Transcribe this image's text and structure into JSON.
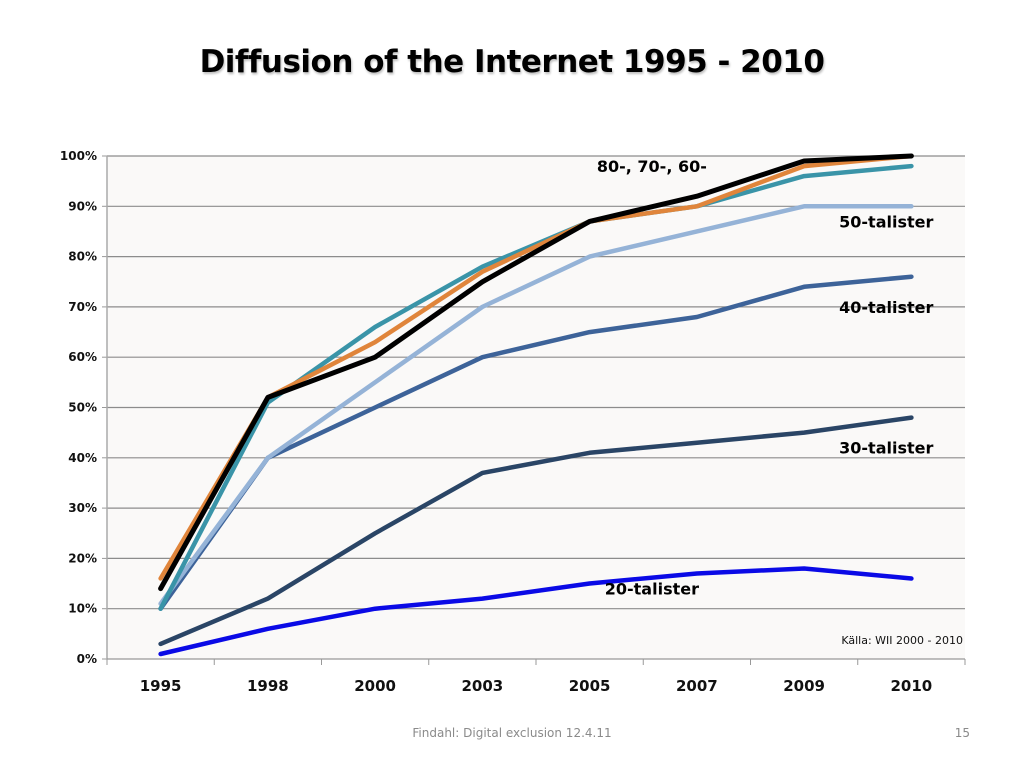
{
  "slide": {
    "title": "Diffusion of the Internet 1995 - 2010",
    "footer_text": "Findahl: Digital exclusion 12.4.11",
    "page_number": "15"
  },
  "chart_data": {
    "type": "line",
    "title": "Diffusion of the Internet 1995 - 2010",
    "xlabel": "",
    "ylabel": "",
    "categories": [
      "1995",
      "1998",
      "2000",
      "2003",
      "2005",
      "2007",
      "2009",
      "2010"
    ],
    "ylim": [
      0,
      100
    ],
    "yticks": [
      "0%",
      "10%",
      "20%",
      "30%",
      "40%",
      "50%",
      "60%",
      "70%",
      "80%",
      "90%",
      "100%"
    ],
    "grid": true,
    "series": [
      {
        "name": "20-talister",
        "color": "#0a0ae6",
        "values": [
          1,
          6,
          10,
          12,
          15,
          17,
          18,
          16
        ]
      },
      {
        "name": "30-talister",
        "color": "#2a4566",
        "values": [
          3,
          12,
          25,
          37,
          41,
          43,
          45,
          48
        ]
      },
      {
        "name": "40-talister",
        "color": "#3d6399",
        "values": [
          10,
          40,
          50,
          60,
          65,
          68,
          74,
          76
        ]
      },
      {
        "name": "50-talister",
        "color": "#95b3d7",
        "values": [
          11,
          40,
          55,
          70,
          80,
          85,
          90,
          90
        ]
      },
      {
        "name": "60-talister",
        "color": "#3a94a8",
        "values": [
          10,
          51,
          66,
          78,
          87,
          90,
          96,
          98
        ]
      },
      {
        "name": "70-talister",
        "color": "#e0853b",
        "values": [
          16,
          52,
          63,
          77,
          87,
          90,
          98,
          100
        ]
      },
      {
        "name": "80-talister",
        "color": "#000000",
        "values": [
          14,
          52,
          60,
          75,
          87,
          92,
          99,
          100
        ]
      }
    ],
    "annotations": [
      {
        "text": "80-, 70-, 60-",
        "near_series": [
          "80-talister",
          "70-talister",
          "60-talister"
        ],
        "at": "2007",
        "value": 98
      },
      {
        "text": "50-talister",
        "near_series": [
          "50-talister"
        ],
        "at": "2010",
        "value": 87
      },
      {
        "text": "40-talister",
        "near_series": [
          "40-talister"
        ],
        "at": "2010",
        "value": 70
      },
      {
        "text": "30-talister",
        "near_series": [
          "30-talister"
        ],
        "at": "2010",
        "value": 42
      },
      {
        "text": "20-talister",
        "near_series": [
          "20-talister"
        ],
        "at": "2007",
        "value": 14
      }
    ],
    "source_note": "Källa: WII 2000 - 2010",
    "legend": "none"
  }
}
